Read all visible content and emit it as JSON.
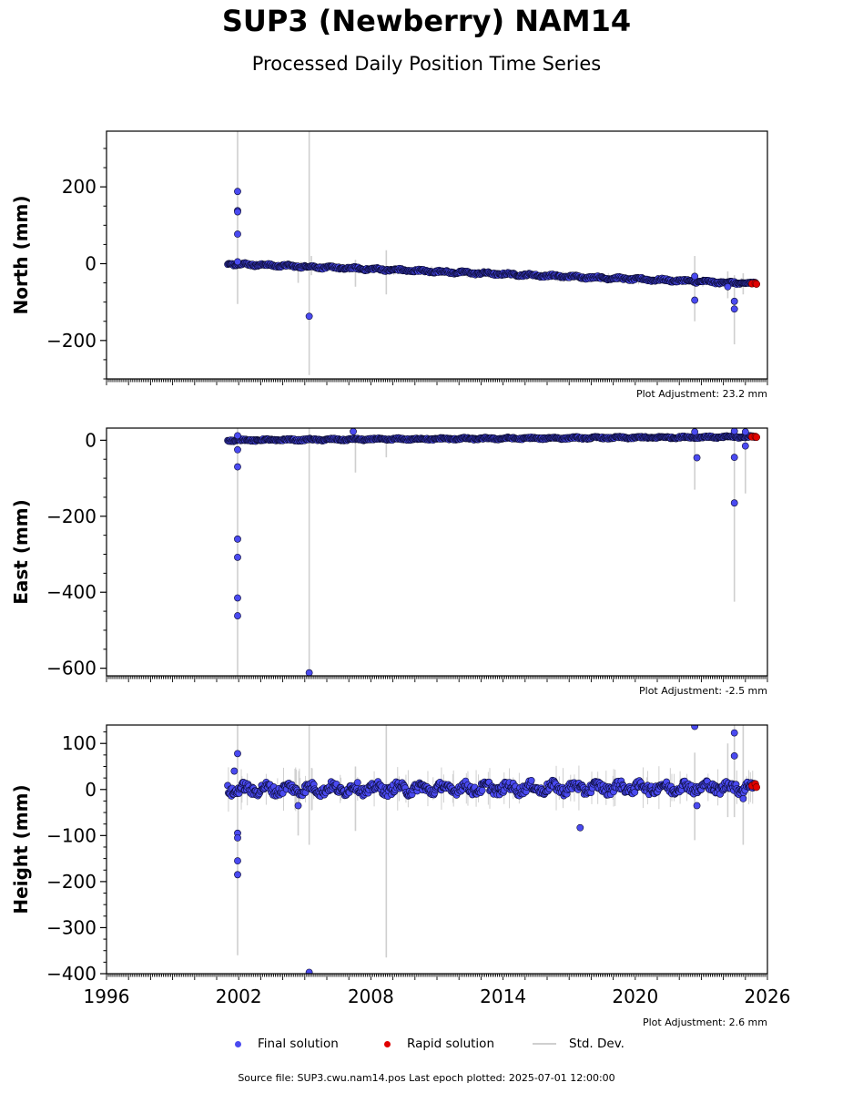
{
  "chart_data": [
    {
      "type": "scatter",
      "panel": "north",
      "title": "SUP3 (Newberry) NAM14",
      "subtitle": "Processed Daily Position Time Series",
      "ylabel": "North (mm)",
      "ylim": [
        -300,
        345
      ],
      "yticks": [
        -200,
        0,
        200
      ],
      "xlim": [
        1996,
        2026
      ],
      "adjustment": "Plot Adjustment: 23.2 mm",
      "trend": [
        [
          2001.5,
          0
        ],
        [
          2025.5,
          -52
        ]
      ],
      "noise": 4,
      "outliers": [
        [
          2001.95,
          188
        ],
        [
          2001.95,
          138
        ],
        [
          2001.95,
          135
        ],
        [
          2001.95,
          77
        ],
        [
          2001.95,
          5
        ],
        [
          2005.2,
          -137
        ],
        [
          2022.7,
          -95
        ],
        [
          2022.7,
          -33
        ],
        [
          2024.5,
          -98
        ],
        [
          2024.5,
          -118
        ],
        [
          2024.2,
          -60
        ]
      ],
      "rapid": [
        [
          2025.3,
          -52
        ],
        [
          2025.45,
          -51
        ],
        [
          2025.5,
          -53
        ]
      ],
      "stddev": [
        [
          2001.95,
          -105,
          345
        ],
        [
          2005.2,
          -290,
          345
        ],
        [
          2005.3,
          -30,
          20
        ],
        [
          2007.3,
          -60,
          10
        ],
        [
          2008.7,
          -80,
          35
        ],
        [
          2004.7,
          -50,
          0
        ],
        [
          2022.7,
          -150,
          20
        ],
        [
          2024.5,
          -210,
          -30
        ],
        [
          2024.2,
          -90,
          -20
        ],
        [
          2024.9,
          -80,
          -25
        ]
      ]
    },
    {
      "type": "scatter",
      "panel": "east",
      "ylabel": "East (mm)",
      "ylim": [
        -620,
        32
      ],
      "yticks": [
        -600,
        -400,
        -200,
        0
      ],
      "xlim": [
        1996,
        2026
      ],
      "adjustment": "Plot Adjustment: -2.5 mm",
      "trend": [
        [
          2001.5,
          0
        ],
        [
          2025.5,
          9
        ]
      ],
      "noise": 3,
      "outliers": [
        [
          2001.95,
          12
        ],
        [
          2001.95,
          -25
        ],
        [
          2001.95,
          -70
        ],
        [
          2001.95,
          -260
        ],
        [
          2001.95,
          -308
        ],
        [
          2001.95,
          -415
        ],
        [
          2001.95,
          -462
        ],
        [
          2005.2,
          -612
        ],
        [
          2007.2,
          23
        ],
        [
          2022.7,
          22
        ],
        [
          2022.8,
          -46
        ],
        [
          2024.5,
          24
        ],
        [
          2024.5,
          -45
        ],
        [
          2024.5,
          -165
        ],
        [
          2025.0,
          22
        ],
        [
          2025.0,
          -15
        ]
      ],
      "rapid": [
        [
          2025.3,
          9
        ],
        [
          2025.45,
          10
        ],
        [
          2025.5,
          8
        ]
      ],
      "stddev": [
        [
          2001.95,
          -620,
          32
        ],
        [
          2005.2,
          -620,
          32
        ],
        [
          2007.3,
          -85,
          10
        ],
        [
          2008.7,
          -45,
          5
        ],
        [
          2022.7,
          -130,
          32
        ],
        [
          2024.5,
          -425,
          32
        ],
        [
          2025.0,
          -140,
          32
        ]
      ]
    },
    {
      "type": "scatter",
      "panel": "height",
      "ylabel": "Height (mm)",
      "ylim": [
        -400,
        140
      ],
      "yticks": [
        -400,
        -300,
        -200,
        -100,
        0,
        100
      ],
      "xlim": [
        1996,
        2026
      ],
      "xticks": [
        "1996",
        "2002",
        "2008",
        "2014",
        "2020",
        "2026"
      ],
      "adjustment": "Plot Adjustment: 2.6 mm",
      "trend": [
        [
          2001.5,
          0
        ],
        [
          2025.5,
          5
        ]
      ],
      "noise": 14,
      "outliers": [
        [
          2001.95,
          78
        ],
        [
          2001.8,
          40
        ],
        [
          2001.95,
          -95
        ],
        [
          2001.95,
          -105
        ],
        [
          2001.95,
          -155
        ],
        [
          2001.95,
          -185
        ],
        [
          2004.7,
          -35
        ],
        [
          2005.2,
          -397
        ],
        [
          2017.5,
          -83
        ],
        [
          2022.7,
          137
        ],
        [
          2022.8,
          -35
        ],
        [
          2024.5,
          123
        ],
        [
          2024.5,
          73
        ],
        [
          2024.9,
          -20
        ]
      ],
      "rapid": [
        [
          2025.3,
          8
        ],
        [
          2025.45,
          12
        ],
        [
          2025.5,
          5
        ]
      ],
      "stddev": [
        [
          2001.95,
          -360,
          140
        ],
        [
          2005.2,
          -120,
          140
        ],
        [
          2004.7,
          -100,
          10
        ],
        [
          2007.3,
          -90,
          50
        ],
        [
          2008.7,
          -365,
          140
        ],
        [
          2022.7,
          -110,
          80
        ],
        [
          2024.5,
          -60,
          140
        ],
        [
          2024.9,
          -120,
          140
        ],
        [
          2024.2,
          -60,
          100
        ]
      ]
    }
  ],
  "legend": {
    "final": "Final solution",
    "rapid": "Rapid solution",
    "std": "Std. Dev."
  },
  "colors": {
    "final": "#4a4af0",
    "rapid": "#e00000",
    "std": "#cfcfcf",
    "edge": "#0a0a30"
  },
  "footer": "Source file: SUP3.cwu.nam14.pos  Last epoch plotted: 2025-07-01 12:00:00"
}
